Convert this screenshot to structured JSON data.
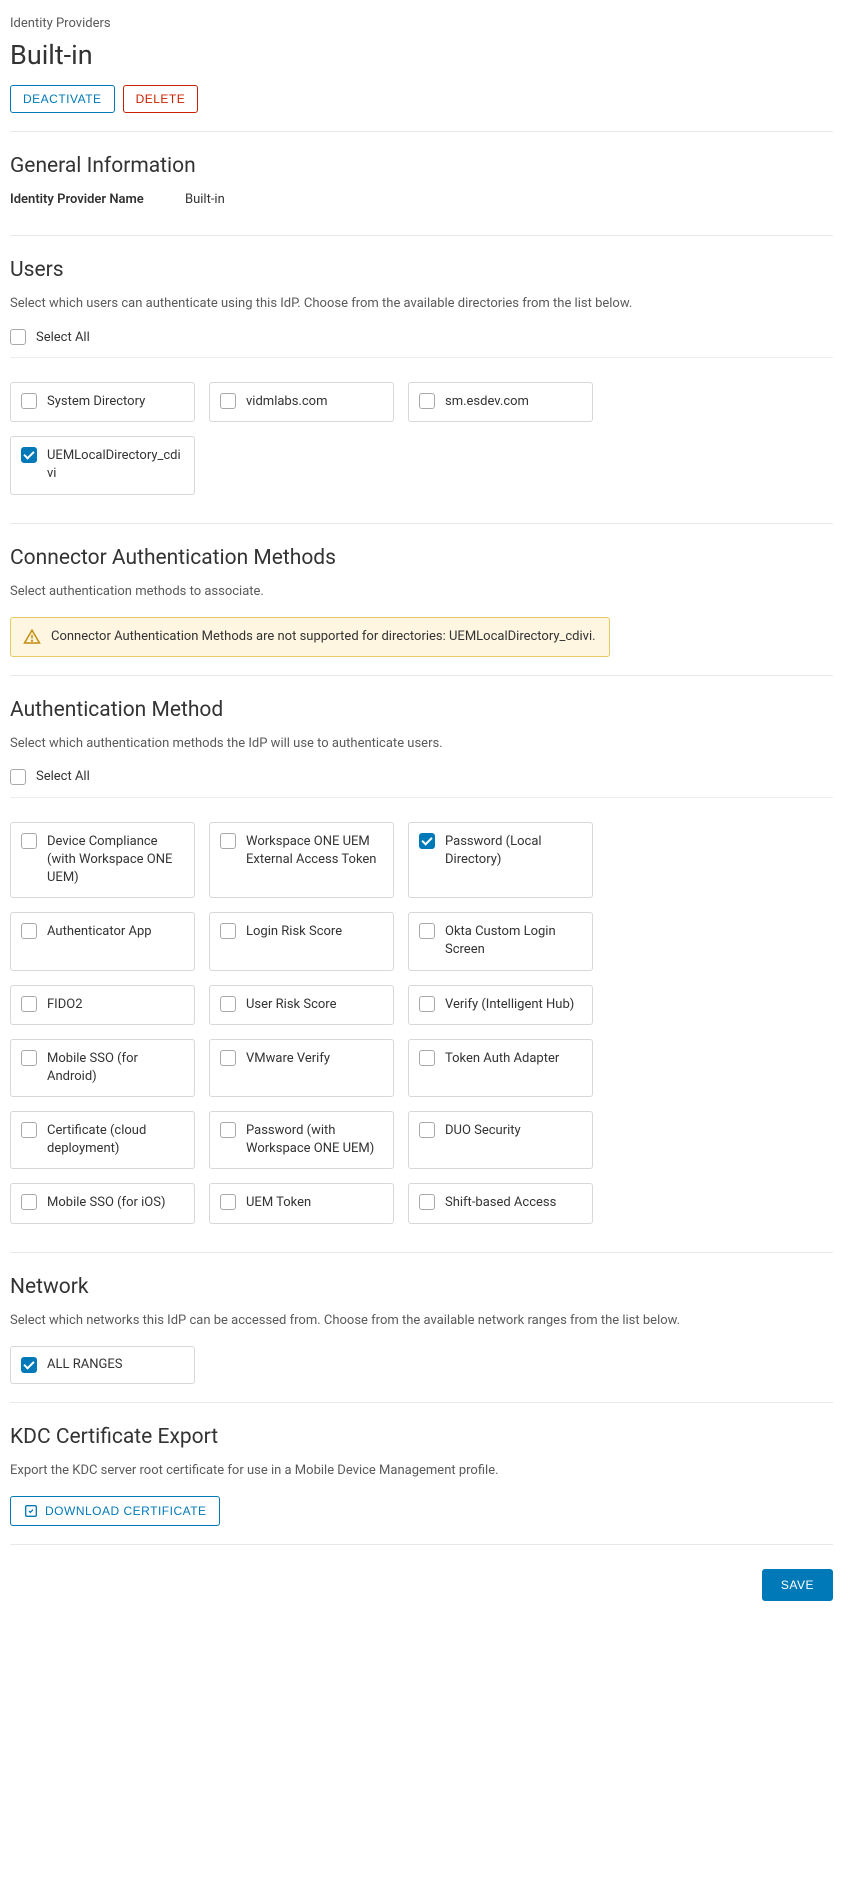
{
  "breadcrumb": "Identity Providers",
  "pageTitle": "Built-in",
  "actions": {
    "deactivate": "DEACTIVATE",
    "delete": "DELETE",
    "save": "SAVE",
    "downloadCert": "DOWNLOAD CERTIFICATE"
  },
  "generalInfo": {
    "title": "General Information",
    "nameLabel": "Identity Provider Name",
    "nameValue": "Built-in"
  },
  "users": {
    "title": "Users",
    "desc": "Select which users can authenticate using this IdP. Choose from the available directories from the list below.",
    "selectAll": "Select All",
    "directories": [
      {
        "label": "System Directory",
        "checked": false
      },
      {
        "label": "vidmlabs.com",
        "checked": false
      },
      {
        "label": "sm.esdev.com",
        "checked": false
      },
      {
        "label": "UEMLocalDirectory_cdivi",
        "checked": true
      }
    ]
  },
  "connectorAuth": {
    "title": "Connector Authentication Methods",
    "desc": "Select authentication methods to associate.",
    "alertText": "Connector Authentication Methods are not supported for directories: UEMLocalDirectory_cdivi."
  },
  "authMethod": {
    "title": "Authentication Method",
    "desc": "Select which authentication methods the IdP will use to authenticate users.",
    "selectAll": "Select All",
    "methods": [
      {
        "label": "Device Compliance (with Workspace ONE UEM)",
        "checked": false
      },
      {
        "label": "Workspace ONE UEM External Access Token",
        "checked": false
      },
      {
        "label": "Password (Local Directory)",
        "checked": true
      },
      {
        "label": "Authenticator App",
        "checked": false
      },
      {
        "label": "Login Risk Score",
        "checked": false
      },
      {
        "label": "Okta Custom Login Screen",
        "checked": false
      },
      {
        "label": "FIDO2",
        "checked": false
      },
      {
        "label": "User Risk Score",
        "checked": false
      },
      {
        "label": "Verify (Intelligent Hub)",
        "checked": false
      },
      {
        "label": "Mobile SSO (for Android)",
        "checked": false
      },
      {
        "label": "VMware Verify",
        "checked": false
      },
      {
        "label": "Token Auth Adapter",
        "checked": false
      },
      {
        "label": "Certificate (cloud deployment)",
        "checked": false
      },
      {
        "label": "Password (with Workspace ONE UEM)",
        "checked": false
      },
      {
        "label": "DUO Security",
        "checked": false
      },
      {
        "label": "Mobile SSO (for iOS)",
        "checked": false
      },
      {
        "label": "UEM Token",
        "checked": false
      },
      {
        "label": "Shift-based Access",
        "checked": false
      }
    ]
  },
  "network": {
    "title": "Network",
    "desc": "Select which networks this IdP can be accessed from. Choose from the available network ranges from the list below.",
    "ranges": [
      {
        "label": "ALL RANGES",
        "checked": true
      }
    ]
  },
  "kdc": {
    "title": "KDC Certificate Export",
    "desc": "Export the KDC server root certificate for use in a Mobile Device Management profile."
  },
  "colors": {
    "primary": "#0079b8",
    "danger": "#c92100",
    "alertBg": "#fef6e1",
    "alertBorder": "#e5c963"
  }
}
